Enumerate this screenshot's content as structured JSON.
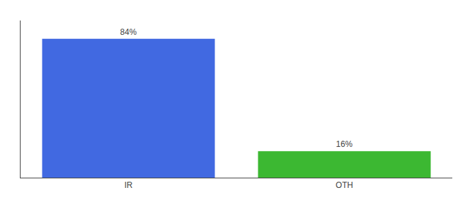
{
  "chart_data": {
    "type": "bar",
    "categories": [
      "IR",
      "OTH"
    ],
    "values": [
      84,
      16
    ],
    "value_labels": [
      "84%",
      "16%"
    ],
    "colors": [
      "#4169e1",
      "#3cb832"
    ],
    "data_labels": true,
    "ylim": [
      0,
      95
    ],
    "grid": false,
    "tick_labels": "x"
  }
}
